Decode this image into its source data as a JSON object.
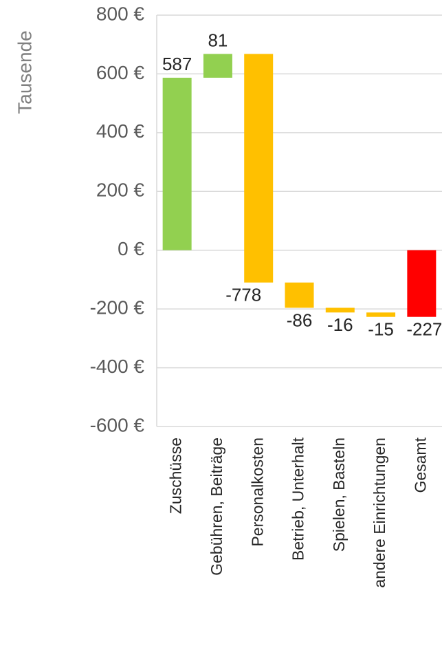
{
  "chart_data": {
    "type": "waterfall",
    "y_label": "Tausende",
    "categories": [
      "Zuschüsse",
      "Gebühren, Beiträge",
      "Personalkosten",
      "Betrieb, Unterhalt",
      "Spielen, Basteln",
      "andere Einrichtungen",
      "Gesamt"
    ],
    "values": [
      587,
      81,
      -778,
      -86,
      -16,
      -15,
      -227
    ],
    "colors": [
      "#92d050",
      "#92d050",
      "#ffc000",
      "#ffc000",
      "#ffc000",
      "#ffc000",
      "#ff0000"
    ],
    "last_is_total": true,
    "ylim": [
      -600,
      800
    ],
    "yticks": [
      {
        "value": -600,
        "label": "-600 €"
      },
      {
        "value": -400,
        "label": "-400 €"
      },
      {
        "value": -200,
        "label": "-200 €"
      },
      {
        "value": 0,
        "label": "0 €"
      },
      {
        "value": 200,
        "label": "200 €"
      },
      {
        "value": 400,
        "label": "400 €"
      },
      {
        "value": 600,
        "label": "600 €"
      },
      {
        "value": 800,
        "label": "800 €"
      }
    ],
    "grid": true
  }
}
